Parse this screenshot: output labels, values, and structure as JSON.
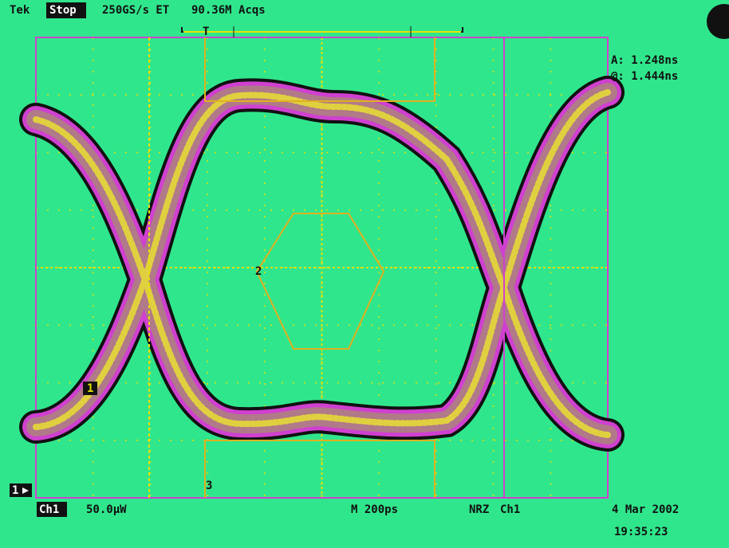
{
  "header": {
    "brand": "Tek",
    "state": "Stop",
    "sample_rate": "250GS/s ET",
    "acquisitions": "90.36M Acqs",
    "trigger_marker": "T"
  },
  "cursors": {
    "a": "A: 1.248ns",
    "delta": "@: 1.444ns"
  },
  "mask_labels": {
    "center": "2",
    "left": "1",
    "bottom": "3"
  },
  "ground_marker": "1",
  "footer": {
    "channel": "Ch1",
    "scale": "50.0µW",
    "timebase": "M 200ps",
    "pattern": "NRZ",
    "source": "Ch1",
    "date": "4 Mar 2002",
    "time": "19:35:23"
  }
}
